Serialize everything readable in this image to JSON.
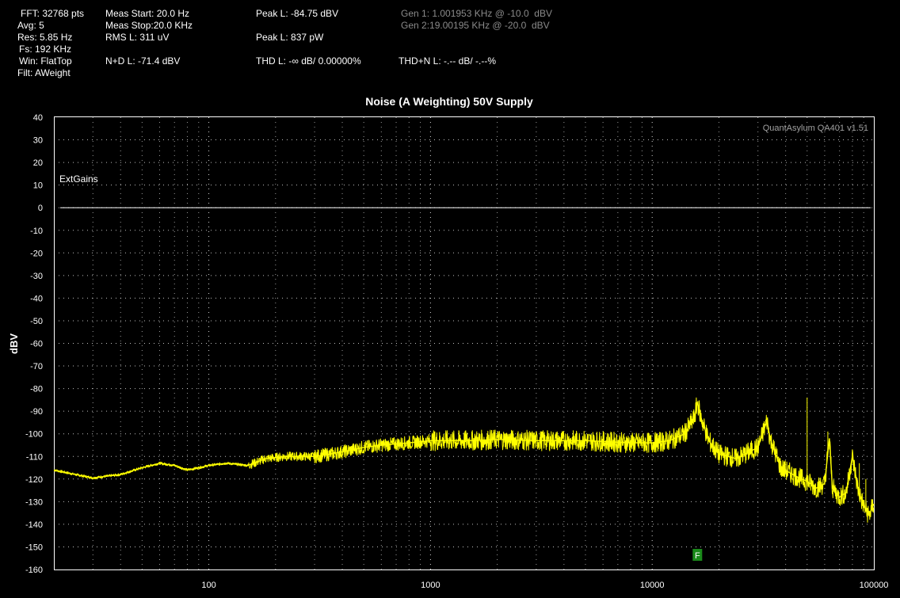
{
  "stats": {
    "fft": "FFT: 32768 pts",
    "avg": "Avg: 5",
    "res": "Res: 5.85 Hz",
    "fs": "Fs: 192 KHz",
    "win": "Win: FlatTop",
    "filt": "Filt: AWeight",
    "meas_start": "Meas Start: 20.0 Hz",
    "meas_stop": "Meas Stop:20.0 KHz",
    "rms": "RMS L: 311 uV",
    "nd": "N+D L: -71.4 dBV",
    "peak_l": "Peak L: -84.75 dBV",
    "peak_w": "Peak L: 837 pW",
    "thd": "THD L: -∞ dB/ 0.00000%",
    "thdn": "THD+N L: -.-- dB/ -.--%",
    "gen1": "Gen 1: 1.001953 KHz @ -10.0  dBV",
    "gen2": "Gen 2:19.00195 KHz @ -20.0  dBV"
  },
  "watermark": "QuantAsylum QA401 v1.51",
  "ext_gains_label": "ExtGains",
  "marker_label": "F",
  "colors": {
    "background": "#000000",
    "trace": "#ffff00",
    "grid": "#ffffff",
    "marker": "#1a8a1a"
  },
  "chart_data": {
    "type": "line",
    "title": "Noise (A Weighting) 50V Supply",
    "xlabel": "",
    "ylabel": "dBV",
    "xscale": "log",
    "xlim": [
      20,
      100000
    ],
    "ylim": [
      -160,
      40
    ],
    "xticks": [
      100,
      1000,
      10000,
      100000
    ],
    "xtick_labels": [
      "100",
      "1000",
      "10000",
      "100000"
    ],
    "yticks": [
      40,
      30,
      20,
      10,
      0,
      -10,
      -20,
      -30,
      -40,
      -50,
      -60,
      -70,
      -80,
      -90,
      -100,
      -110,
      -120,
      -130,
      -140,
      -150,
      -160
    ],
    "grid": true,
    "reference_line": 0,
    "marker_frequency": 16000,
    "series": [
      {
        "points": [
          [
            20,
            -116
          ],
          [
            25,
            -118
          ],
          [
            30,
            -119.5
          ],
          [
            40,
            -118
          ],
          [
            50,
            -115
          ],
          [
            60,
            -113
          ],
          [
            70,
            -114
          ],
          [
            80,
            -116
          ],
          [
            90,
            -115
          ],
          [
            100,
            -114
          ],
          [
            120,
            -113
          ],
          [
            150,
            -114
          ],
          [
            180,
            -111
          ],
          [
            220,
            -110
          ],
          [
            260,
            -110
          ],
          [
            300,
            -110
          ],
          [
            350,
            -109
          ],
          [
            400,
            -108
          ],
          [
            500,
            -106
          ],
          [
            600,
            -105
          ],
          [
            800,
            -104
          ],
          [
            1000,
            -103
          ],
          [
            1500,
            -103
          ],
          [
            2000,
            -102.5
          ],
          [
            3000,
            -103
          ],
          [
            5000,
            -103
          ],
          [
            8000,
            -104
          ],
          [
            10000,
            -104
          ],
          [
            12000,
            -103
          ],
          [
            14000,
            -100
          ],
          [
            15500,
            -93
          ],
          [
            16000,
            -86
          ],
          [
            16500,
            -92
          ],
          [
            18000,
            -103
          ],
          [
            20000,
            -109
          ],
          [
            24000,
            -111
          ],
          [
            30000,
            -106
          ],
          [
            33000,
            -94
          ],
          [
            34000,
            -102
          ],
          [
            38000,
            -115
          ],
          [
            45000,
            -119
          ],
          [
            50000,
            -121
          ],
          [
            55000,
            -124
          ],
          [
            60000,
            -122
          ],
          [
            63000,
            -102
          ],
          [
            65000,
            -124
          ],
          [
            70000,
            -128
          ],
          [
            75000,
            -126
          ],
          [
            80000,
            -110
          ],
          [
            85000,
            -125
          ],
          [
            90000,
            -132
          ],
          [
            95000,
            -136
          ],
          [
            100000,
            -131
          ]
        ]
      }
    ],
    "spikes": [
      [
        50000,
        -84
      ],
      [
        62000,
        -99
      ],
      [
        72000,
        -125
      ],
      [
        80000,
        -109
      ],
      [
        86000,
        -113
      ],
      [
        92000,
        -120
      ]
    ]
  }
}
